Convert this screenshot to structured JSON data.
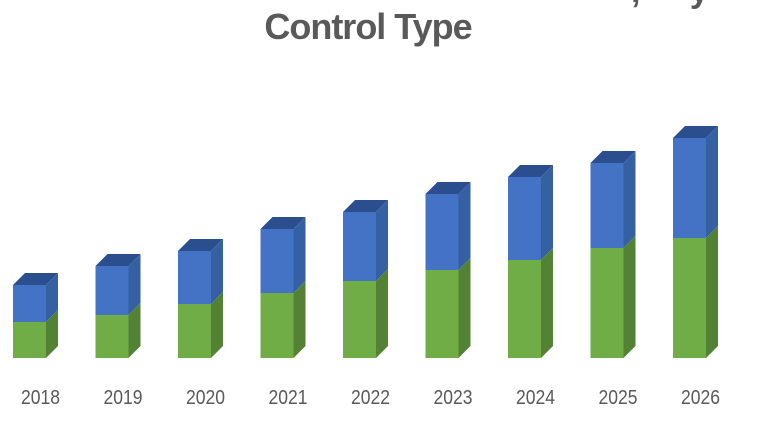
{
  "title": {
    "line1_visible_fragment": ", y",
    "line2": "Control Type",
    "color": "#595959"
  },
  "chart_data": {
    "type": "bar",
    "stacked": true,
    "projection": "3d",
    "title": "Control Type",
    "categories": [
      "2018",
      "2019",
      "2020",
      "2021",
      "2022",
      "2023",
      "2024",
      "2025",
      "2026"
    ],
    "series": [
      {
        "name": "green (bottom segment)",
        "front_color": "#70AD47",
        "side_color": "#538234",
        "values": [
          36,
          43,
          54,
          65,
          77,
          88,
          98,
          110,
          120
        ]
      },
      {
        "name": "blue (top segment)",
        "front_color": "#4472C4",
        "side_color": "#3560A2",
        "top_color": "#2A4E8E",
        "values": [
          37,
          49,
          53,
          64,
          69,
          76,
          83,
          85,
          100
        ]
      }
    ],
    "totals": [
      73,
      92,
      107,
      129,
      146,
      164,
      181,
      195,
      220
    ],
    "value_units": "relative units (no value axis visible in image)",
    "axes": {
      "x_label": "",
      "y_label": "",
      "y_axis_visible": false,
      "x_axis_line_visible": false,
      "gridlines": false
    },
    "legend": {
      "visible": false
    },
    "label_color": "#595959",
    "background": "#FFFFFF"
  }
}
